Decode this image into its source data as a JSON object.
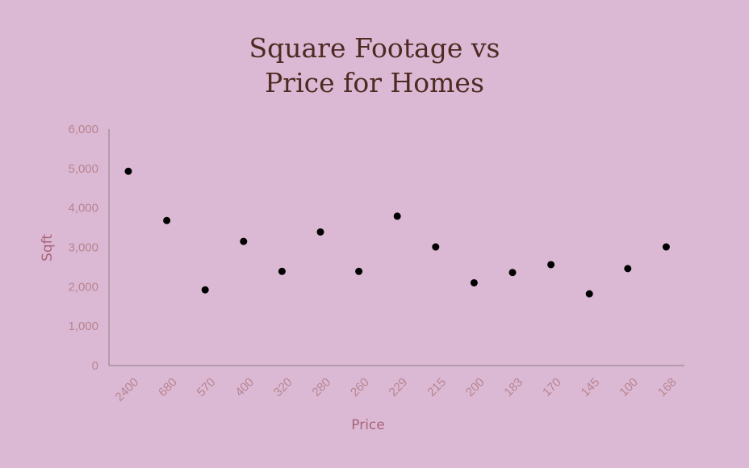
{
  "chart_data": {
    "type": "scatter",
    "title_lines": [
      "Square Footage vs",
      "Price for  Homes"
    ],
    "xlabel": "Price",
    "ylabel": "Sqft",
    "categories": [
      "2400",
      "680",
      "570",
      "400",
      "320",
      "280",
      "260",
      "229",
      "215",
      "200",
      "183",
      "170",
      "145",
      "100",
      "168"
    ],
    "values": [
      4930,
      3680,
      1920,
      3150,
      2390,
      3390,
      2390,
      3790,
      3010,
      2100,
      2360,
      2560,
      1820,
      2460,
      3010
    ],
    "ylim": [
      0,
      6000
    ],
    "yticks": [
      "0",
      "1,000",
      "2,000",
      "3,000",
      "4,000",
      "5,000",
      "6,000"
    ],
    "grid": false,
    "legend": "none"
  },
  "colors": {
    "background": "#dbb9d4",
    "title": "#4e2a22",
    "tick_labels": "#b8848f",
    "axis_labels": "#a86477",
    "axis_line": "#8c7a86",
    "points": "#000000"
  }
}
